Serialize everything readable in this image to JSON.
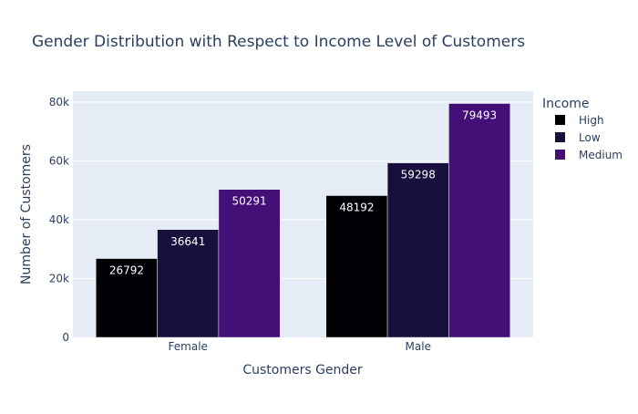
{
  "chart_data": {
    "type": "bar",
    "title": "Gender Distribution with Respect to Income Level of Customers",
    "xlabel": "Customers Gender",
    "ylabel": "Number of Customers",
    "categories": [
      "Female",
      "Male"
    ],
    "series": [
      {
        "name": "High",
        "values": [
          26792,
          48192
        ],
        "color": "#000004"
      },
      {
        "name": "Low",
        "values": [
          36641,
          59298
        ],
        "color": "#180f3d"
      },
      {
        "name": "Medium",
        "values": [
          50291,
          79493
        ],
        "color": "#440f76"
      }
    ],
    "ylim": [
      0,
      83677
    ],
    "yticks": [
      0,
      20000,
      40000,
      60000,
      80000
    ],
    "ytick_labels": [
      "0",
      "20k",
      "40k",
      "60k",
      "80k"
    ],
    "legend_title": "Income",
    "legend_position": "right",
    "grid": true,
    "plot_bgcolor": "#e5ecf6",
    "text_color": "#2a3f5f"
  }
}
